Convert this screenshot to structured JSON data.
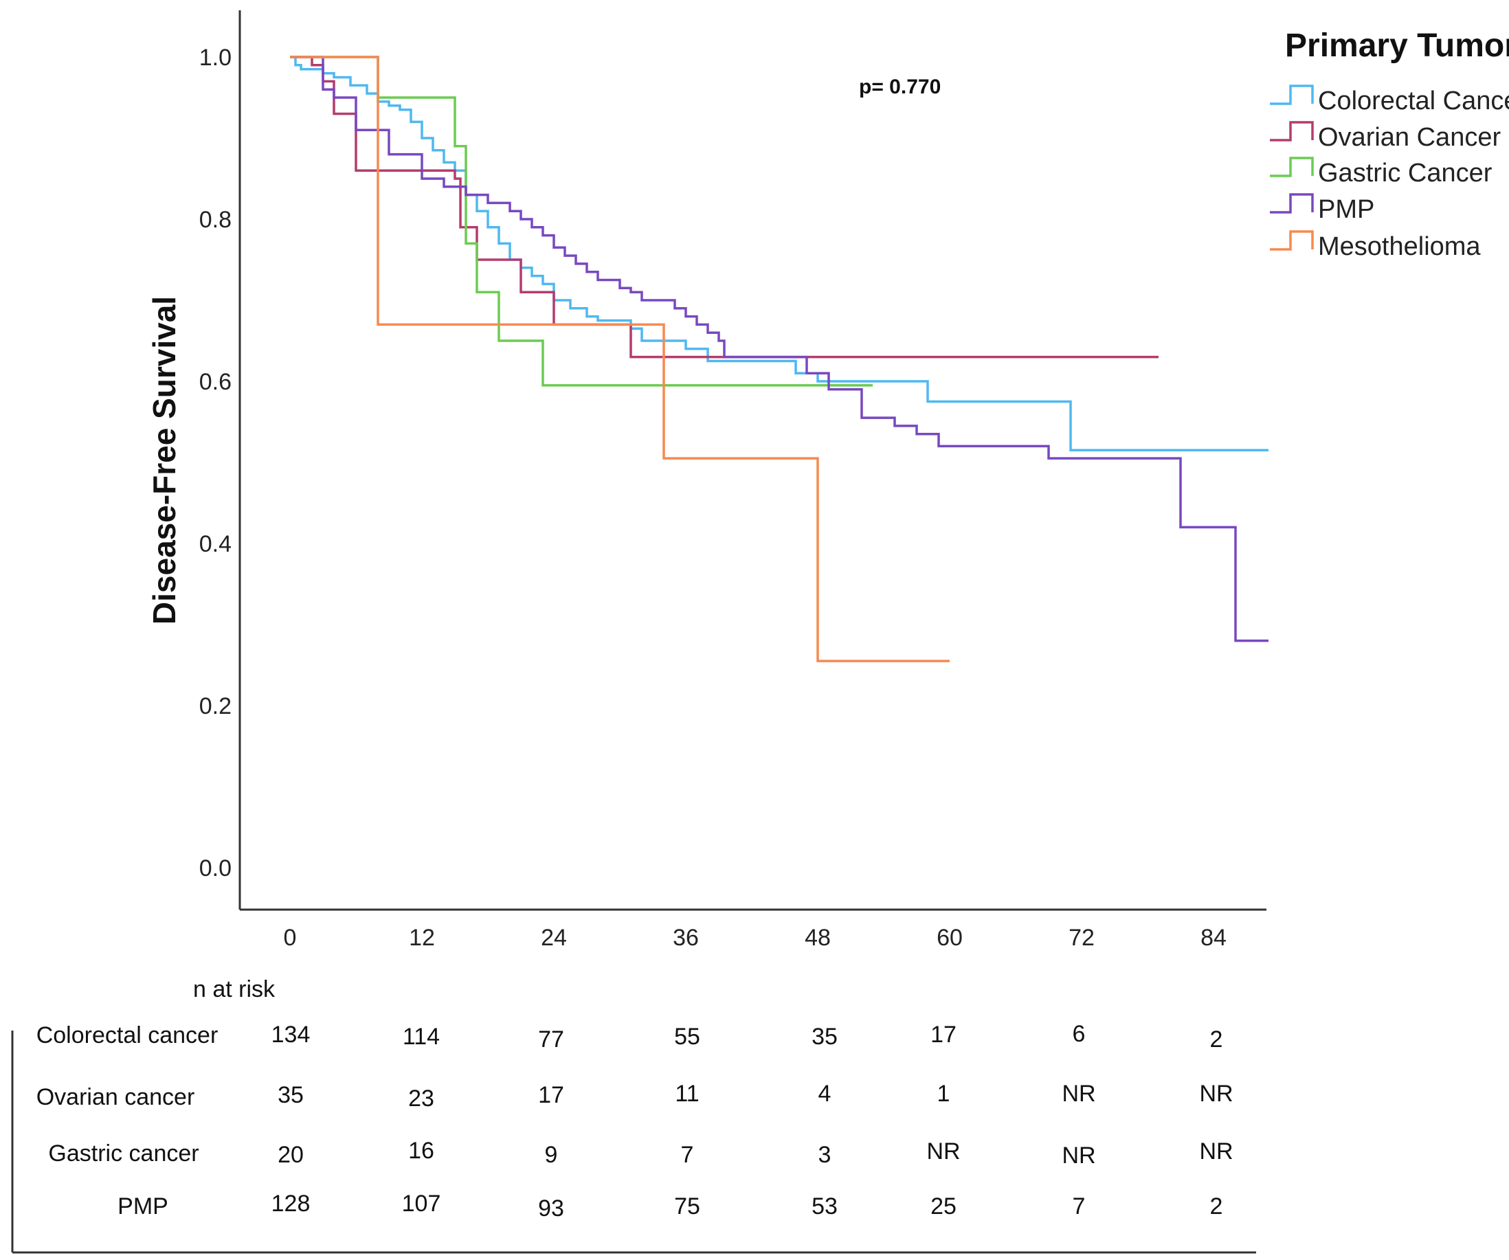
{
  "chart_data": {
    "type": "line",
    "subtype": "kaplan-meier step",
    "ylabel": "Disease-Free Survival",
    "xlabel": "",
    "xlim": [
      -4,
      89
    ],
    "ylim": [
      -0.05,
      1.06
    ],
    "x_ticks": [
      "0",
      "12",
      "24",
      "36",
      "48",
      "60",
      "72",
      "84"
    ],
    "y_ticks": [
      "0.0",
      "0.2",
      "0.4",
      "0.6",
      "0.8",
      "1.0"
    ],
    "annotation": "p= 0.770",
    "legend": {
      "title": "Primary Tumor",
      "position": "top-right"
    },
    "series": [
      {
        "name": "Colorectal Cancer",
        "color": "#4FB8F0",
        "points": [
          [
            0,
            1.0
          ],
          [
            0.5,
            0.99
          ],
          [
            1,
            0.985
          ],
          [
            3,
            0.98
          ],
          [
            4,
            0.975
          ],
          [
            5.5,
            0.965
          ],
          [
            7,
            0.955
          ],
          [
            8,
            0.945
          ],
          [
            9,
            0.94
          ],
          [
            10,
            0.935
          ],
          [
            11,
            0.92
          ],
          [
            12,
            0.9
          ],
          [
            13,
            0.885
          ],
          [
            14,
            0.87
          ],
          [
            15,
            0.86
          ],
          [
            16,
            0.83
          ],
          [
            17,
            0.81
          ],
          [
            18,
            0.79
          ],
          [
            19,
            0.77
          ],
          [
            20,
            0.75
          ],
          [
            21,
            0.74
          ],
          [
            22,
            0.73
          ],
          [
            23,
            0.72
          ],
          [
            24,
            0.7
          ],
          [
            25.5,
            0.69
          ],
          [
            27,
            0.68
          ],
          [
            28,
            0.675
          ],
          [
            31,
            0.665
          ],
          [
            32,
            0.65
          ],
          [
            36,
            0.64
          ],
          [
            38,
            0.625
          ],
          [
            46,
            0.61
          ],
          [
            48,
            0.6
          ],
          [
            58,
            0.575
          ],
          [
            71,
            0.515
          ],
          [
            89,
            0.515
          ]
        ]
      },
      {
        "name": "Ovarian Cancer",
        "color": "#B43C6E",
        "points": [
          [
            0,
            1.0
          ],
          [
            2,
            0.99
          ],
          [
            3,
            0.97
          ],
          [
            4,
            0.93
          ],
          [
            6,
            0.86
          ],
          [
            15,
            0.85
          ],
          [
            15.5,
            0.79
          ],
          [
            17,
            0.75
          ],
          [
            21,
            0.71
          ],
          [
            24,
            0.67
          ],
          [
            31,
            0.63
          ],
          [
            79,
            0.63
          ]
        ]
      },
      {
        "name": "Gastric Cancer",
        "color": "#6CCB52",
        "points": [
          [
            0,
            1.0
          ],
          [
            8,
            0.95
          ],
          [
            15,
            0.89
          ],
          [
            16,
            0.77
          ],
          [
            17,
            0.71
          ],
          [
            19,
            0.65
          ],
          [
            23,
            0.595
          ],
          [
            53,
            0.595
          ]
        ]
      },
      {
        "name": "PMP",
        "color": "#7848C0",
        "points": [
          [
            0,
            1.0
          ],
          [
            3,
            0.96
          ],
          [
            4,
            0.95
          ],
          [
            6,
            0.91
          ],
          [
            9,
            0.88
          ],
          [
            12,
            0.85
          ],
          [
            14,
            0.84
          ],
          [
            16,
            0.83
          ],
          [
            18,
            0.82
          ],
          [
            20,
            0.81
          ],
          [
            21,
            0.8
          ],
          [
            22,
            0.79
          ],
          [
            23,
            0.78
          ],
          [
            24,
            0.765
          ],
          [
            25,
            0.755
          ],
          [
            26,
            0.745
          ],
          [
            27,
            0.735
          ],
          [
            28,
            0.725
          ],
          [
            30,
            0.715
          ],
          [
            31,
            0.71
          ],
          [
            32,
            0.7
          ],
          [
            35,
            0.69
          ],
          [
            36,
            0.68
          ],
          [
            37,
            0.67
          ],
          [
            38,
            0.66
          ],
          [
            39,
            0.65
          ],
          [
            39.5,
            0.63
          ],
          [
            47,
            0.61
          ],
          [
            49,
            0.59
          ],
          [
            52,
            0.555
          ],
          [
            55,
            0.545
          ],
          [
            57,
            0.535
          ],
          [
            59,
            0.52
          ],
          [
            69,
            0.505
          ],
          [
            81,
            0.42
          ],
          [
            86,
            0.28
          ],
          [
            89,
            0.28
          ]
        ]
      },
      {
        "name": "Mesothelioma",
        "color": "#F58A50",
        "points": [
          [
            0,
            1.0
          ],
          [
            8,
            0.67
          ],
          [
            34,
            0.505
          ],
          [
            48,
            0.255
          ],
          [
            60,
            0.255
          ]
        ]
      }
    ],
    "risk_table": {
      "title": "n at risk",
      "rows": [
        {
          "label": "Colorectal cancer",
          "values": [
            "134",
            "114",
            "77",
            "55",
            "35",
            "17",
            "6",
            "2"
          ]
        },
        {
          "label": "Ovarian cancer",
          "values": [
            "35",
            "23",
            "17",
            "11",
            "4",
            "1",
            "NR",
            "NR"
          ]
        },
        {
          "label": "Gastric cancer",
          "values": [
            "20",
            "16",
            "9",
            "7",
            "3",
            "NR",
            "NR",
            "NR"
          ]
        },
        {
          "label": "PMP",
          "values": [
            "128",
            "107",
            "93",
            "75",
            "53",
            "25",
            "7",
            "2"
          ]
        }
      ]
    }
  }
}
